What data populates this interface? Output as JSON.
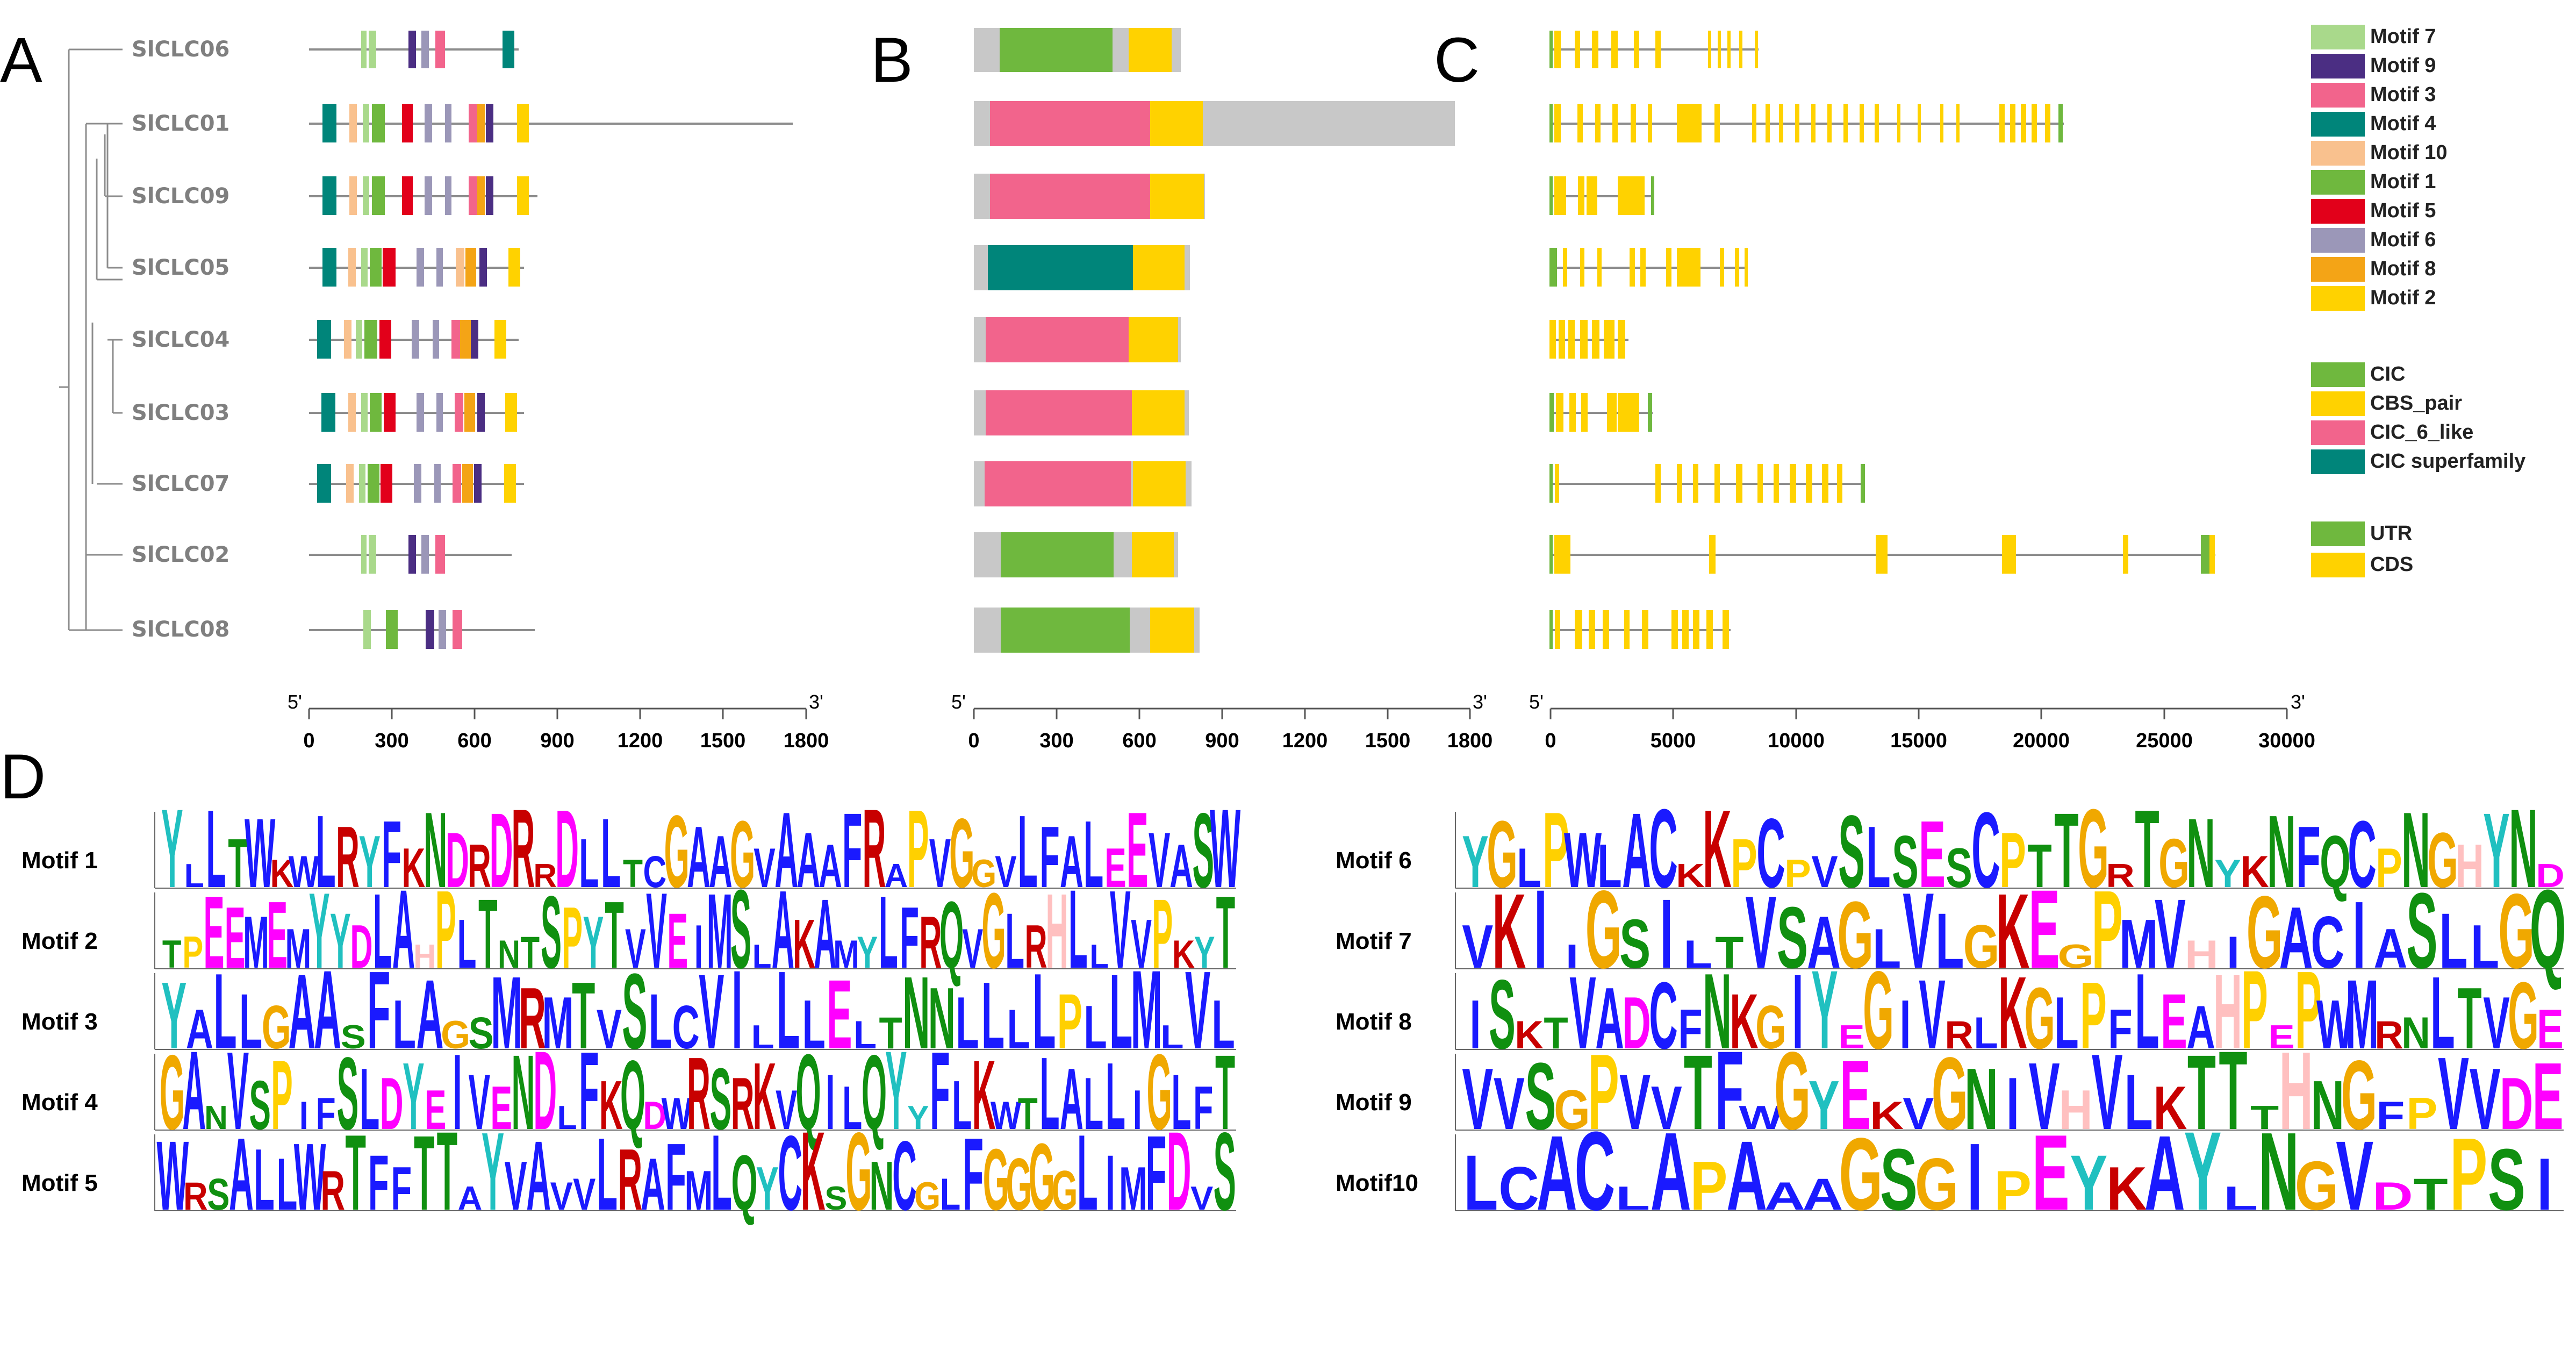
{
  "panels": {
    "a": "A",
    "b": "B",
    "c": "C",
    "d": "D"
  },
  "colors": {
    "motif7": "#a9d98b",
    "motif9": "#4b2e83",
    "motif3": "#f2648c",
    "motif4": "#00857a",
    "motif10": "#f9c18e",
    "motif1": "#6fb83e",
    "motif5": "#e2001a",
    "motif6": "#9b97b8",
    "motif8": "#f4a416",
    "motif2": "#ffd200",
    "cic": "#6fb83e",
    "cbs_pair": "#ffd200",
    "cic6like": "#f2648c",
    "cic_superfamily": "#00857a",
    "utr": "#6fb83e",
    "cds": "#ffd200",
    "protein_bg": "#c8c8c8"
  },
  "genes": [
    {
      "name": "SlCLC06"
    },
    {
      "name": "SlCLC01"
    },
    {
      "name": "SlCLC09"
    },
    {
      "name": "SlCLC05"
    },
    {
      "name": "SlCLC04"
    },
    {
      "name": "SlCLC03"
    },
    {
      "name": "SlCLC07"
    },
    {
      "name": "SlCLC02"
    },
    {
      "name": "SlCLC08"
    }
  ],
  "axis_a": {
    "start": "5'",
    "end": "3'",
    "ticks": [
      "0",
      "300",
      "600",
      "900",
      "1200",
      "1500",
      "1800"
    ]
  },
  "axis_b": {
    "start": "5'",
    "end": "3'",
    "ticks": [
      "0",
      "300",
      "600",
      "900",
      "1200",
      "1500",
      "1800"
    ]
  },
  "axis_c": {
    "start": "5'",
    "end": "3'",
    "ticks": [
      "0",
      "5000",
      "10000",
      "15000",
      "20000",
      "25000",
      "30000"
    ]
  },
  "legend_motifs": [
    "Motif 7",
    "Motif 9",
    "Motif 3",
    "Motif 4",
    "Motif 10",
    "Motif 1",
    "Motif 5",
    "Motif 6",
    "Motif 8",
    "Motif 2"
  ],
  "legend_domains": [
    "CIC",
    "CBS_pair",
    "CIC_6_like",
    "CIC superfamily"
  ],
  "legend_structure": [
    "UTR",
    "CDS"
  ],
  "logos": [
    {
      "label": "Motif 1",
      "seq": "YLLTWKWLRYFKNDRDRRDLLTCGAAGVAAAFRAPVGGVLFALEEVASW"
    },
    {
      "label": "Motif 2",
      "seq": "TPEEMEMYYDLAHPLTNTSPYTVVEIMSLAKAMYLFRQVGLRHLLVVPKYT"
    },
    {
      "label": "Motif 3",
      "seq": "YALLGAASFLAGSMRMTVSLCVILLLELTNNLLLLPLLMLVL"
    },
    {
      "label": "Motif 4",
      "seq": "GANVSPIFSLDYEIVENDLFKQDWRSRKVQILQYYFLKWTLALLIGLFT"
    },
    {
      "label": "Motif 5",
      "seq": "WRSALLWRTFFTTAYVAVVLRAFMLQYCKSGNCGLFGGGGLIMFDVS"
    },
    {
      "label": "Motif 6",
      "seq": "YGLPWLACKKPCPVSLSESCPTTGRTGNYKNFQCPNGHYND"
    },
    {
      "label": "Motif 7",
      "seq": "VKIIGSILTVSAGLVLGKEGPMVHIGACIASLLGQ"
    },
    {
      "label": "Motif 8",
      "seq": "ISKTVADCFNKGIYEGIVRLKGLPFLEAHPEPWMRNLTVGE"
    },
    {
      "label": "Motif 9",
      "seq": "VVSGPVVTFWGYEKVGNIVHVLKTTTHNGFPVVDE"
    },
    {
      "label": "Motif10",
      "seq": "LCACLAPAAAGSGIPEYKAYLNGVDTPSI"
    }
  ]
}
